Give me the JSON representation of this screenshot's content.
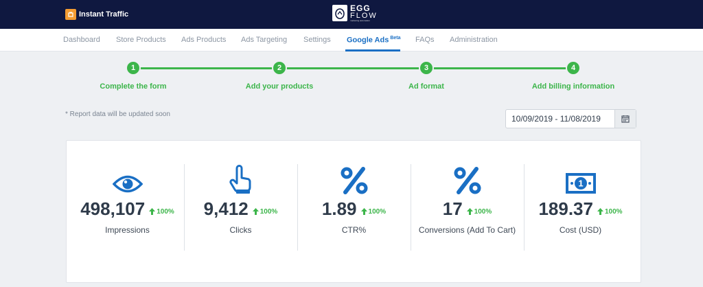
{
  "header": {
    "app_name": "Instant Traffic",
    "center_logo": {
      "line1": "EGG",
      "line2": "FLOW",
      "tagline": "marketing automation"
    }
  },
  "nav": {
    "items": [
      {
        "label": "Dashboard"
      },
      {
        "label": "Store Products"
      },
      {
        "label": "Ads Products"
      },
      {
        "label": "Ads Targeting"
      },
      {
        "label": "Settings"
      },
      {
        "label": "Google Ads",
        "badge": "Beta",
        "active": true
      },
      {
        "label": "FAQs"
      },
      {
        "label": "Administration"
      }
    ]
  },
  "stepper": {
    "steps": [
      {
        "number": "1",
        "label": "Complete the form"
      },
      {
        "number": "2",
        "label": "Add your products"
      },
      {
        "number": "3",
        "label": "Ad format"
      },
      {
        "number": "4",
        "label": "Add billing information"
      }
    ]
  },
  "report_note": "* Report data will be updated soon",
  "date_range": {
    "value": "10/09/2019 - 11/08/2019",
    "icon": "calendar-icon"
  },
  "stats": [
    {
      "value": "498,107",
      "change": "100%",
      "label": "Impressions",
      "icon": "eye-icon"
    },
    {
      "value": "9,412",
      "change": "100%",
      "label": "Clicks",
      "icon": "pointer-hand-icon"
    },
    {
      "value": "1.89",
      "change": "100%",
      "label": "CTR%",
      "icon": "percent-icon"
    },
    {
      "value": "17",
      "change": "100%",
      "label": "Conversions (Add To Cart)",
      "icon": "percent-icon"
    },
    {
      "value": "189.37",
      "change": "100%",
      "label": "Cost (USD)",
      "icon": "banknote-icon"
    }
  ],
  "colors": {
    "header_bg": "#0f1840",
    "accent_blue": "#1a6fc4",
    "success_green": "#3cb54a"
  }
}
